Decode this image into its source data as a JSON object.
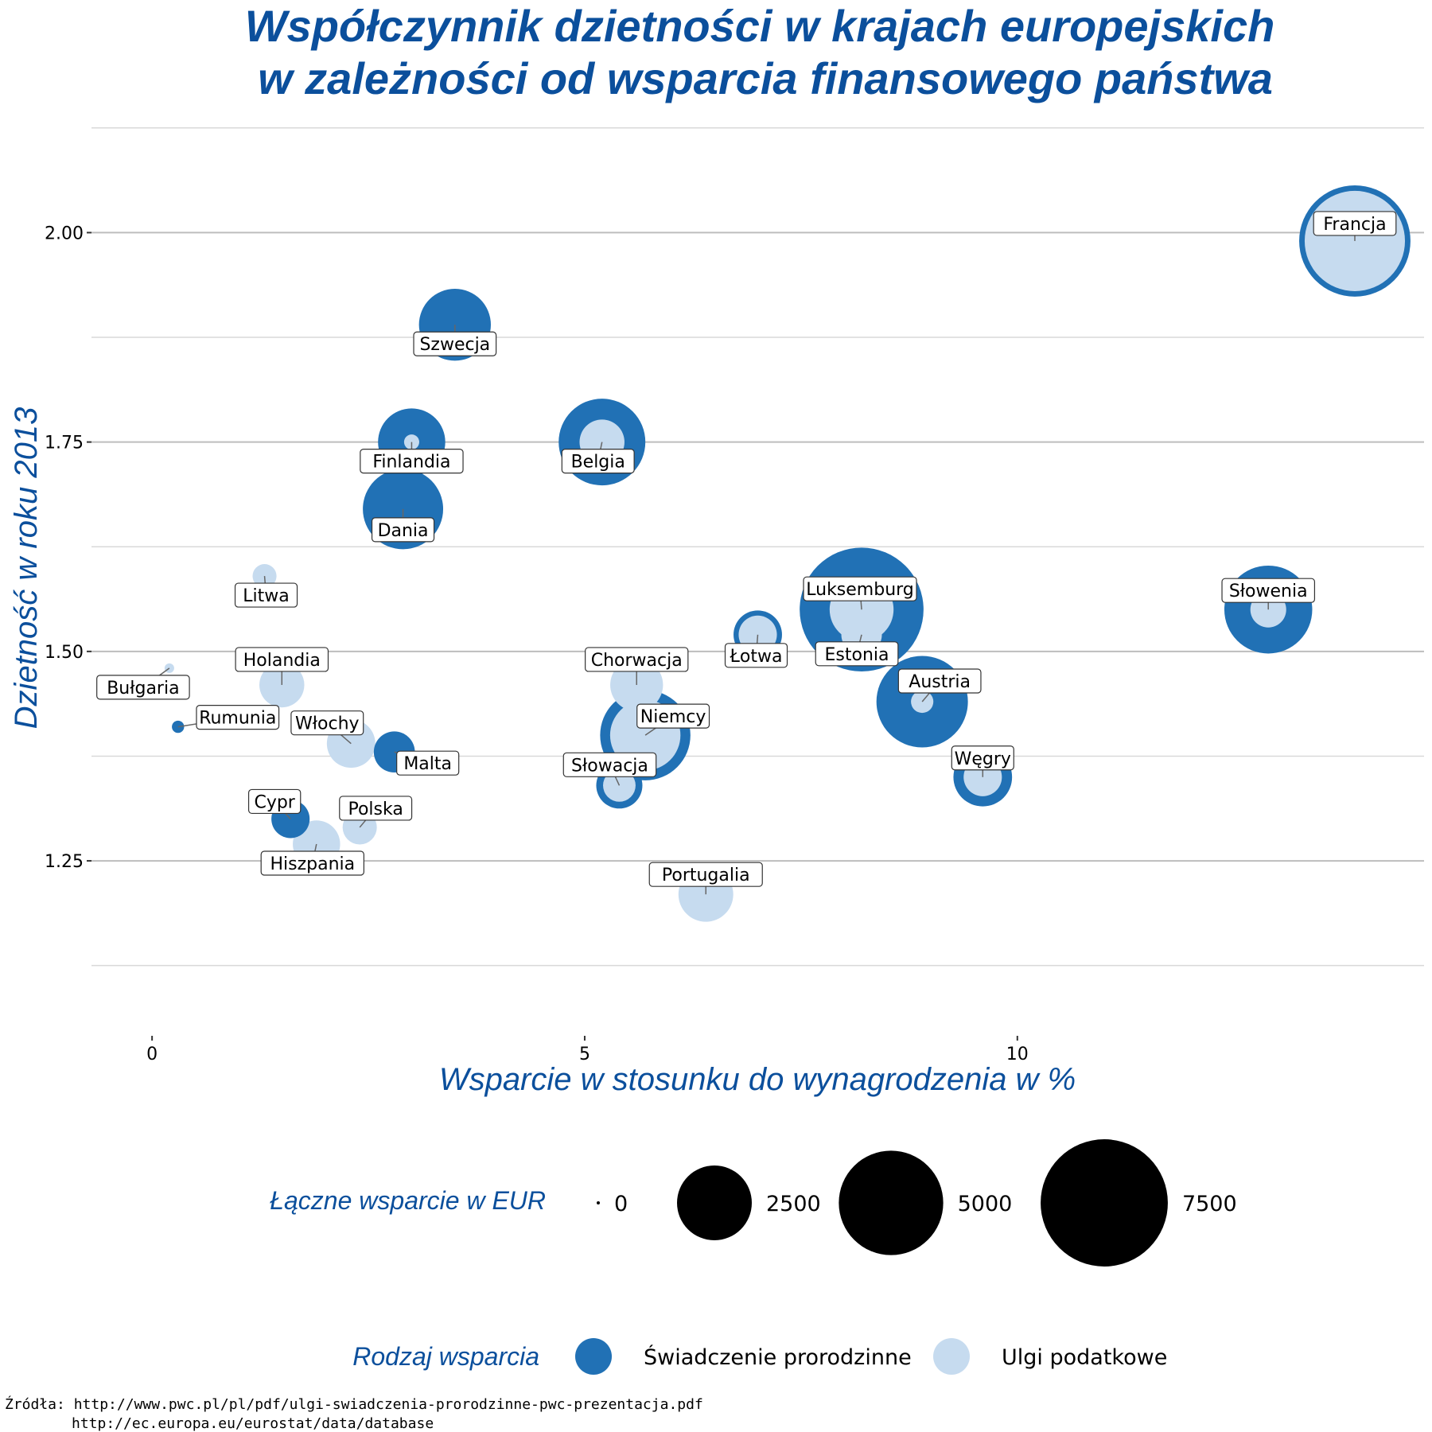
{
  "chart_data": {
    "type": "scatter",
    "title": [
      "Współczynnik dzietności w krajach europejskich",
      "w zależności od wsparcia finansowego państwa"
    ],
    "xlabel": "Wsparcie w stosunku do wynagrodzenia w %",
    "ylabel": "Dzietność w roku 2013",
    "xlim": [
      -0.7,
      14.7
    ],
    "ylim": [
      1.1,
      2.14
    ],
    "x_ticks": [
      0,
      5,
      10
    ],
    "x_tick_labels": [
      "0",
      "5",
      "10"
    ],
    "y_ticks": [
      1.25,
      1.5,
      1.75,
      2.0
    ],
    "y_tick_labels": [
      "1.25",
      "1.50",
      "1.75",
      "2.00"
    ],
    "grid": true,
    "size_legend": {
      "title": "Łączne wsparcie w EUR",
      "values": [
        0,
        2500,
        5000,
        7500
      ],
      "labels": [
        "0",
        "2500",
        "5000",
        "7500"
      ]
    },
    "color_legend": {
      "title": "Rodzaj wsparcia",
      "series": [
        {
          "name": "Świadczenie prorodzinne",
          "color": "#2171b5"
        },
        {
          "name": "Ulgi podatkowe",
          "color": "#c6dbef"
        }
      ]
    },
    "points": [
      {
        "country": "Francja",
        "x": 13.9,
        "y": 1.99,
        "swiadczenia": 5700,
        "ulgi": 4600
      },
      {
        "country": "Szwecja",
        "x": 3.5,
        "y": 1.89,
        "swiadczenia": 2300,
        "ulgi": 0
      },
      {
        "country": "Finlandia",
        "x": 3.0,
        "y": 1.75,
        "swiadczenia": 2000,
        "ulgi": 70
      },
      {
        "country": "Belgia",
        "x": 5.2,
        "y": 1.75,
        "swiadczenia": 3400,
        "ulgi": 850
      },
      {
        "country": "Dania",
        "x": 2.9,
        "y": 1.67,
        "swiadczenia": 2900,
        "ulgi": 0
      },
      {
        "country": "Litwa",
        "x": 1.3,
        "y": 1.59,
        "swiadczenia": 0,
        "ulgi": 210
      },
      {
        "country": "Luksemburg",
        "x": 8.2,
        "y": 1.55,
        "swiadczenia": 7100,
        "ulgi": 1800
      },
      {
        "country": "Estonia",
        "x": 8.2,
        "y": 1.52,
        "swiadczenia": 0,
        "ulgi": 680
      },
      {
        "country": "Słowenia",
        "x": 12.9,
        "y": 1.55,
        "swiadczenia": 3500,
        "ulgi": 520
      },
      {
        "country": "Łotwa",
        "x": 7.0,
        "y": 1.52,
        "swiadczenia": 1000,
        "ulgi": 600
      },
      {
        "country": "Bułgaria",
        "x": 0.2,
        "y": 1.48,
        "swiadczenia": 0,
        "ulgi": 20
      },
      {
        "country": "Holandia",
        "x": 1.5,
        "y": 1.46,
        "swiadczenia": 0,
        "ulgi": 850
      },
      {
        "country": "Chorwacja",
        "x": 5.6,
        "y": 1.46,
        "swiadczenia": 0,
        "ulgi": 1200
      },
      {
        "country": "Austria",
        "x": 8.9,
        "y": 1.44,
        "swiadczenia": 3800,
        "ulgi": 180
      },
      {
        "country": "Rumunia",
        "x": 0.3,
        "y": 1.41,
        "swiadczenia": 40,
        "ulgi": 0
      },
      {
        "country": "Niemcy",
        "x": 5.7,
        "y": 1.4,
        "swiadczenia": 3700,
        "ulgi": 2200
      },
      {
        "country": "Włochy",
        "x": 2.3,
        "y": 1.39,
        "swiadczenia": 0,
        "ulgi": 1000
      },
      {
        "country": "Malta",
        "x": 2.8,
        "y": 1.38,
        "swiadczenia": 700,
        "ulgi": 0
      },
      {
        "country": "Węgry",
        "x": 9.6,
        "y": 1.35,
        "swiadczenia": 1500,
        "ulgi": 600
      },
      {
        "country": "Słowacja",
        "x": 5.4,
        "y": 1.34,
        "swiadczenia": 900,
        "ulgi": 420
      },
      {
        "country": "Cypr",
        "x": 1.6,
        "y": 1.3,
        "swiadczenia": 600,
        "ulgi": 0
      },
      {
        "country": "Polska",
        "x": 2.4,
        "y": 1.29,
        "swiadczenia": 0,
        "ulgi": 470
      },
      {
        "country": "Hiszpania",
        "x": 1.9,
        "y": 1.27,
        "swiadczenia": 0,
        "ulgi": 950
      },
      {
        "country": "Portugalia",
        "x": 6.4,
        "y": 1.21,
        "swiadczenia": 0,
        "ulgi": 1300
      }
    ]
  },
  "source": {
    "line1": "Źródła: http://www.pwc.pl/pl/pdf/ulgi-swiadczenia-prorodzinne-pwc-prezentacja.pdf",
    "line2": "http://ec.europa.eu/eurostat/data/database"
  }
}
